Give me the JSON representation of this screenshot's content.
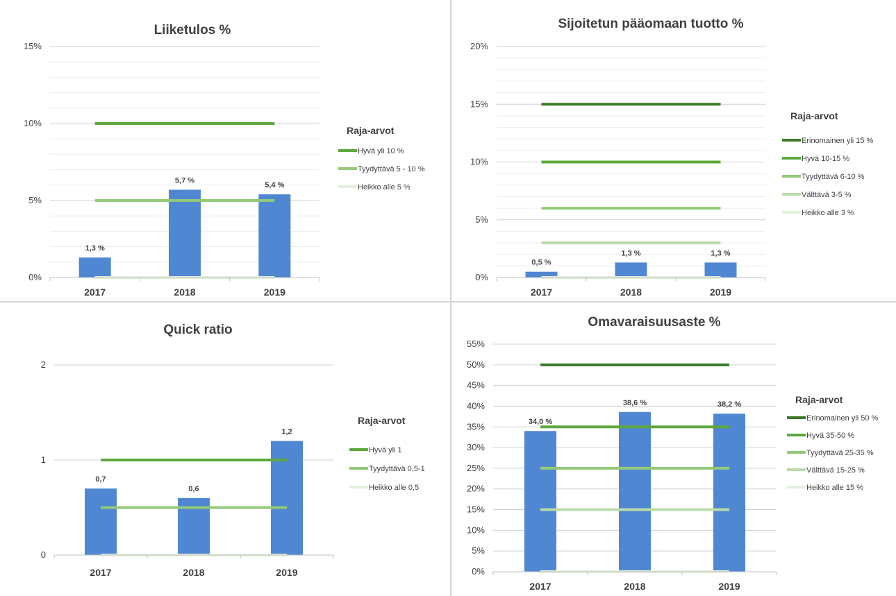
{
  "colors": {
    "bar": "#4f87d2",
    "grid": "#d9d9d9",
    "axis_line": "#bfbfbf",
    "text": "#404040",
    "title": "#404040",
    "erinomainen": "#3b7a28",
    "hyva": "#5ea83d",
    "tyydyttava": "#93c97b",
    "valttava": "#b9dba9",
    "heikko": "#e4f1dc"
  },
  "chart_data": [
    {
      "type": "bar",
      "title": "Liiketulos %",
      "categories": [
        "2017",
        "2018",
        "2019"
      ],
      "values": [
        1.3,
        5.7,
        5.4
      ],
      "value_labels": [
        "1,3 %",
        "5,7 %",
        "5,4 %"
      ],
      "ylim": [
        0,
        15
      ],
      "yticks": [
        0,
        5,
        10,
        15
      ],
      "ytick_labels": [
        "0%",
        "5%",
        "10%",
        "15%"
      ],
      "grid": true,
      "legend_title": "Raja-arvot",
      "legend_position": "right",
      "thresholds": [
        {
          "name": "Hyvä yli 10 %",
          "value": 10,
          "color_key": "hyva"
        },
        {
          "name": "Tyydyttävä 5 - 10 %",
          "value": 5,
          "color_key": "tyydyttava"
        },
        {
          "name": "Heikko alle 5 %",
          "value": 0,
          "color_key": "heikko"
        }
      ]
    },
    {
      "type": "bar",
      "title": "Sijoitetun pääomaan tuotto %",
      "categories": [
        "2017",
        "2018",
        "2019"
      ],
      "values": [
        0.5,
        1.3,
        1.3
      ],
      "value_labels": [
        "0,5 %",
        "1,3 %",
        "1,3 %"
      ],
      "ylim": [
        0,
        20
      ],
      "yticks": [
        0,
        5,
        10,
        15,
        20
      ],
      "ytick_labels": [
        "0%",
        "5%",
        "10%",
        "15%",
        "20%"
      ],
      "grid": true,
      "legend_title": "Raja-arvot",
      "legend_position": "right",
      "thresholds": [
        {
          "name": "Erinomainen yli 15 %",
          "value": 15,
          "color_key": "erinomainen"
        },
        {
          "name": "Hyvä 10-15 %",
          "value": 10,
          "color_key": "hyva"
        },
        {
          "name": "Tyydyttävä 6-10 %",
          "value": 6,
          "color_key": "tyydyttava"
        },
        {
          "name": "Välttävä 3-5 %",
          "value": 3,
          "color_key": "valttava"
        },
        {
          "name": "Heikko alle 3 %",
          "value": 0,
          "color_key": "heikko"
        }
      ]
    },
    {
      "type": "bar",
      "title": "Quick ratio",
      "categories": [
        "2017",
        "2018",
        "2019"
      ],
      "values": [
        0.7,
        0.6,
        1.2
      ],
      "value_labels": [
        "0,7",
        "0,6",
        "1,2"
      ],
      "ylim": [
        0,
        2
      ],
      "yticks": [
        0,
        1,
        2
      ],
      "ytick_labels": [
        "0",
        "1",
        "2"
      ],
      "grid": true,
      "legend_title": "Raja-arvot",
      "legend_position": "right",
      "thresholds": [
        {
          "name": "Hyvä yli 1",
          "value": 1,
          "color_key": "hyva"
        },
        {
          "name": "Tyydyttävä 0,5-1",
          "value": 0.5,
          "color_key": "tyydyttava"
        },
        {
          "name": "Heikko alle 0,5",
          "value": 0,
          "color_key": "heikko"
        }
      ]
    },
    {
      "type": "bar",
      "title": "Omavaraisuusaste %",
      "categories": [
        "2017",
        "2018",
        "2019"
      ],
      "values": [
        34.0,
        38.6,
        38.2
      ],
      "value_labels": [
        "34,0 %",
        "38,6 %",
        "38,2 %"
      ],
      "ylim": [
        0,
        55
      ],
      "yticks": [
        0,
        5,
        10,
        15,
        20,
        25,
        30,
        35,
        40,
        45,
        50,
        55
      ],
      "ytick_labels": [
        "0%",
        "5%",
        "10%",
        "15%",
        "20%",
        "25%",
        "30%",
        "35%",
        "40%",
        "45%",
        "50%",
        "55%"
      ],
      "grid": true,
      "legend_title": "Raja-arvot",
      "legend_position": "right",
      "thresholds": [
        {
          "name": "Erinomainen yli 50 %",
          "value": 50,
          "color_key": "erinomainen"
        },
        {
          "name": "Hyvä 35-50 %",
          "value": 35,
          "color_key": "hyva"
        },
        {
          "name": "Tyydyttävä 25-35 %",
          "value": 25,
          "color_key": "tyydyttava"
        },
        {
          "name": "Välttävä 15-25 %",
          "value": 15,
          "color_key": "valttava"
        },
        {
          "name": "Heikko alle 15 %",
          "value": 0,
          "color_key": "heikko"
        }
      ]
    }
  ]
}
